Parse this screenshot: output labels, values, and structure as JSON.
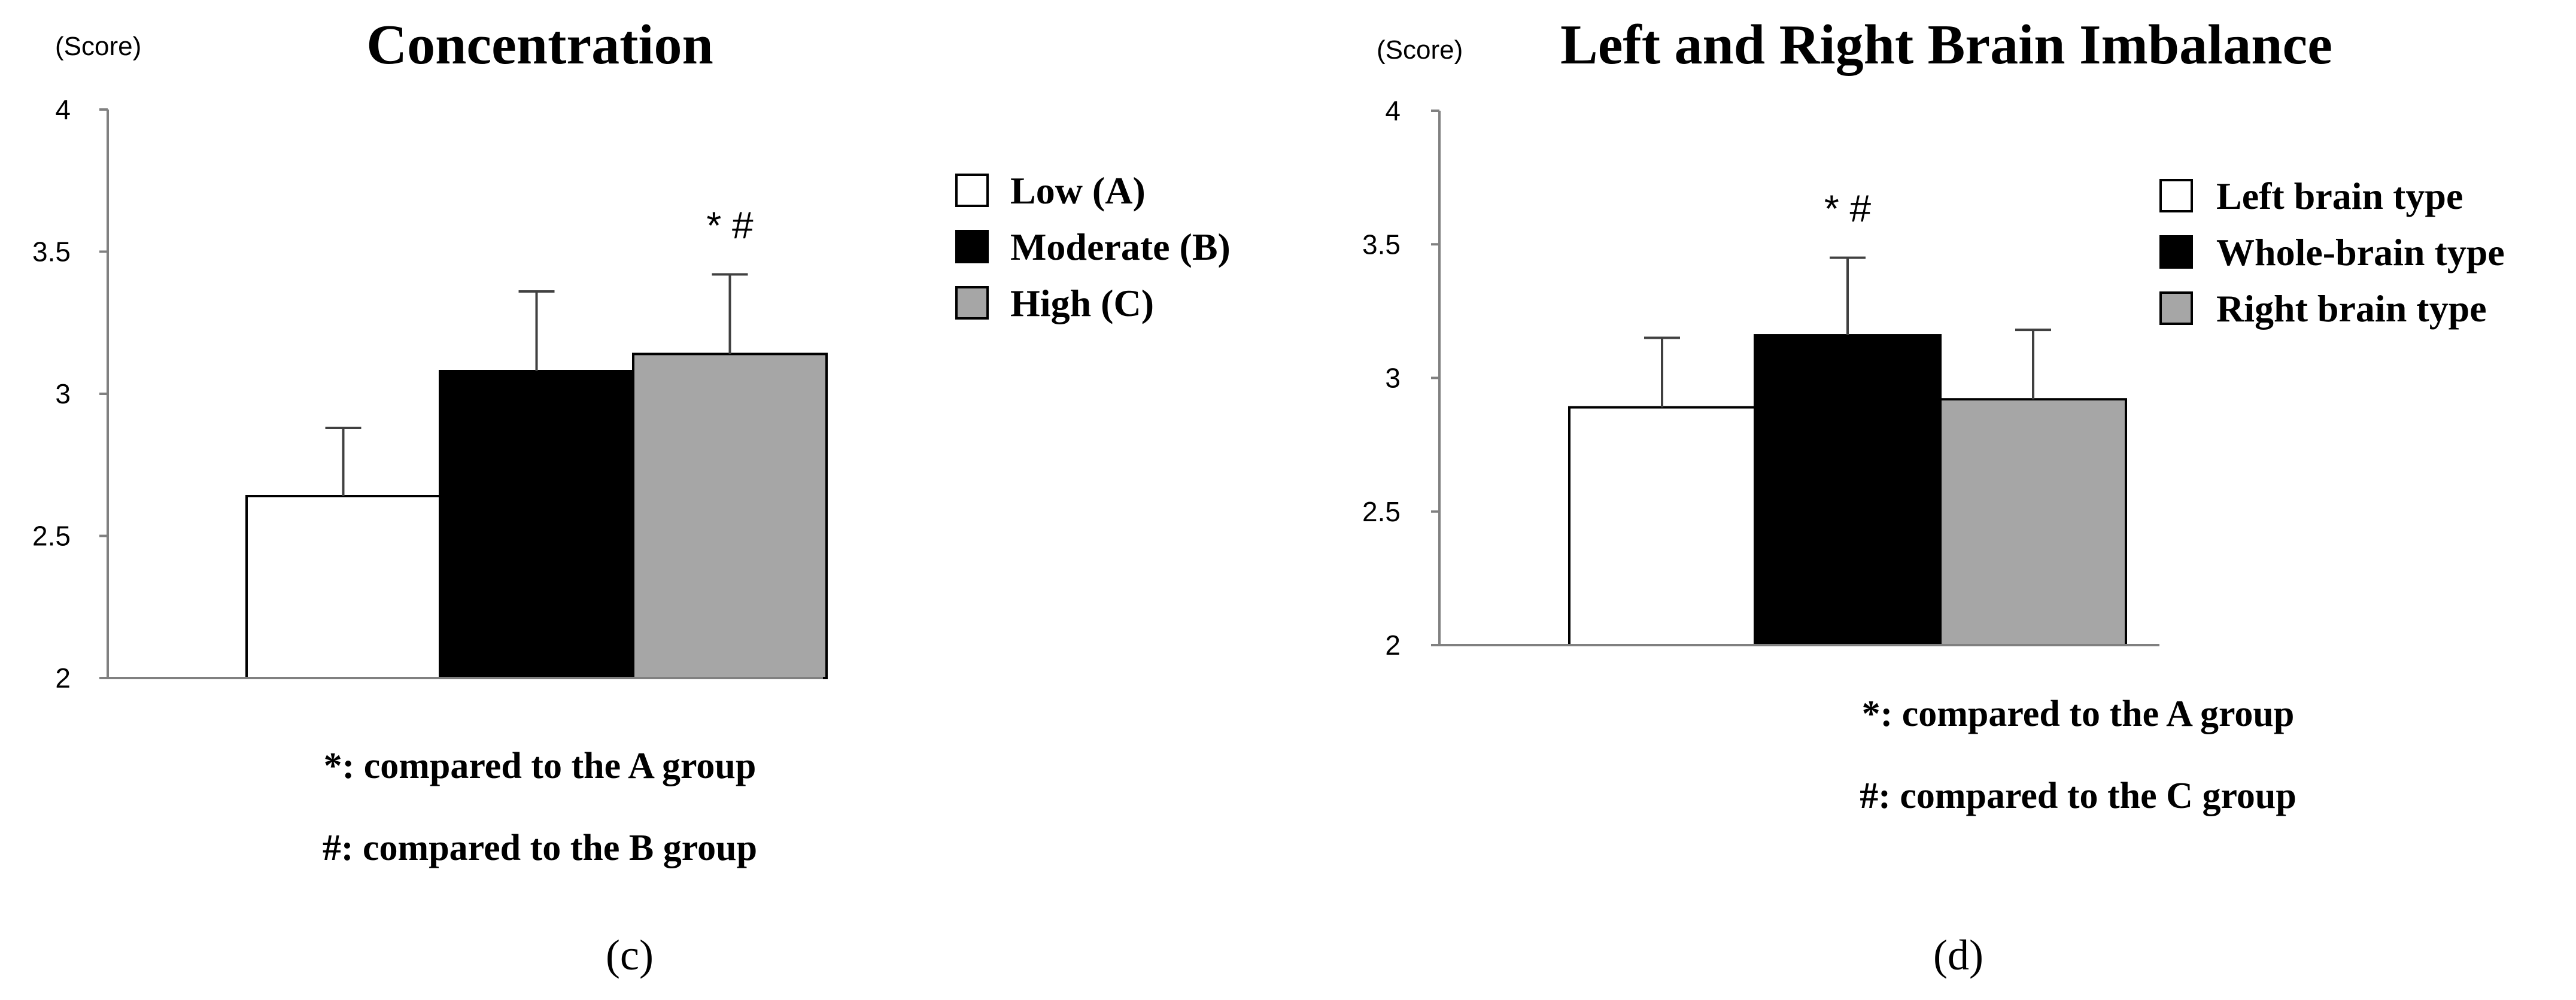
{
  "chart_data": [
    {
      "type": "bar",
      "panel_label": "(c)",
      "title": "Concentration",
      "ylabel": "(Score)",
      "ylim": [
        2,
        4
      ],
      "yticks": [
        2,
        2.5,
        3,
        3.5,
        4
      ],
      "ytick_labels": [
        "2",
        "2.5",
        "3",
        "3.5",
        "4"
      ],
      "series": [
        {
          "name": "Low (A)",
          "value": 2.64,
          "error": 0.24,
          "color": "#ffffff"
        },
        {
          "name": "Moderate (B)",
          "value": 3.08,
          "error": 0.28,
          "color": "#000000"
        },
        {
          "name": "High (C)",
          "value": 3.14,
          "error": 0.28,
          "color": "#a6a6a6"
        }
      ],
      "significance": {
        "bar_index": 2,
        "text": "* #"
      },
      "legend_position": "right",
      "notes": [
        "*: compared to the A group",
        "#: compared to the B group"
      ]
    },
    {
      "type": "bar",
      "panel_label": "(d)",
      "title": "Left and Right Brain Imbalance",
      "ylabel": "(Score)",
      "ylim": [
        2,
        4
      ],
      "yticks": [
        2,
        2.5,
        3,
        3.5,
        4
      ],
      "ytick_labels": [
        "2",
        "2.5",
        "3",
        "3.5",
        "4"
      ],
      "series": [
        {
          "name": "Left brain type",
          "value": 2.89,
          "error": 0.26,
          "color": "#ffffff"
        },
        {
          "name": "Whole-brain type",
          "value": 3.16,
          "error": 0.29,
          "color": "#000000"
        },
        {
          "name": "Right brain type",
          "value": 2.92,
          "error": 0.26,
          "color": "#a6a6a6"
        }
      ],
      "significance": {
        "bar_index": 1,
        "text": "* #"
      },
      "legend_position": "right",
      "notes": [
        "*: compared to the A group",
        "#: compared to the C group"
      ]
    }
  ]
}
